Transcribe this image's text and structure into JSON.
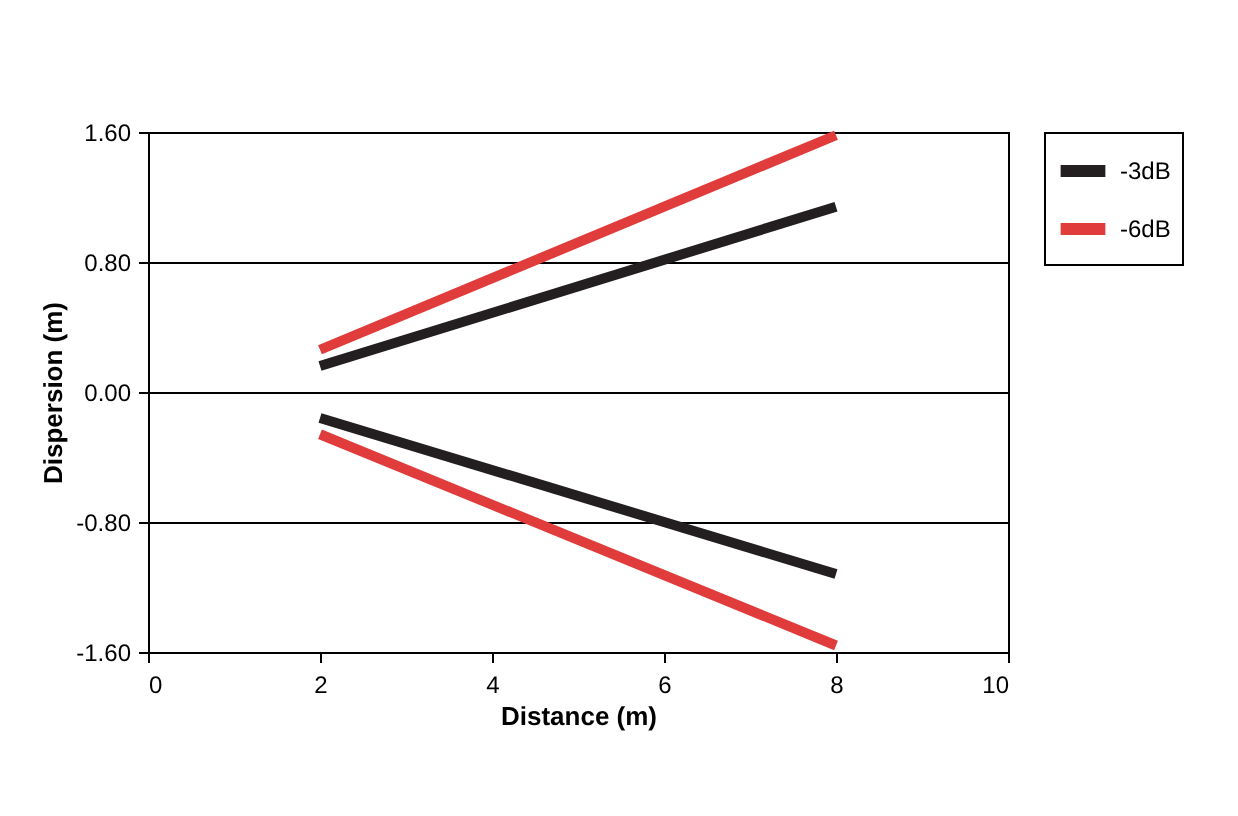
{
  "chart_data": {
    "type": "line",
    "xlabel": "Distance (m)",
    "ylabel": "Dispersion (m)",
    "x": [
      2,
      8
    ],
    "xlim": [
      0,
      10
    ],
    "xticks": [
      0,
      2,
      4,
      6,
      8,
      10
    ],
    "ylim": [
      -1.6,
      1.6
    ],
    "yticks": [
      {
        "value": -1.6,
        "label": "-1.60"
      },
      {
        "value": -0.8,
        "label": "-0.80"
      },
      {
        "value": 0,
        "label": "0.00"
      },
      {
        "value": 0.8,
        "label": "0.80"
      },
      {
        "value": 1.6,
        "label": "1.60"
      }
    ],
    "grid": "y",
    "legend": "right",
    "marker": "none",
    "line_style": "solid",
    "series": [
      {
        "name": "-3dB",
        "color": "#231f20",
        "values": [
          0.16,
          1.14
        ]
      },
      {
        "name": "-6dB",
        "color": "#e03c3c",
        "values": [
          0.26,
          1.58
        ]
      },
      {
        "color": "#231f20",
        "values": [
          -0.16,
          -1.12
        ]
      },
      {
        "color": "#e03c3c",
        "values": [
          -0.26,
          -1.56
        ]
      }
    ]
  }
}
